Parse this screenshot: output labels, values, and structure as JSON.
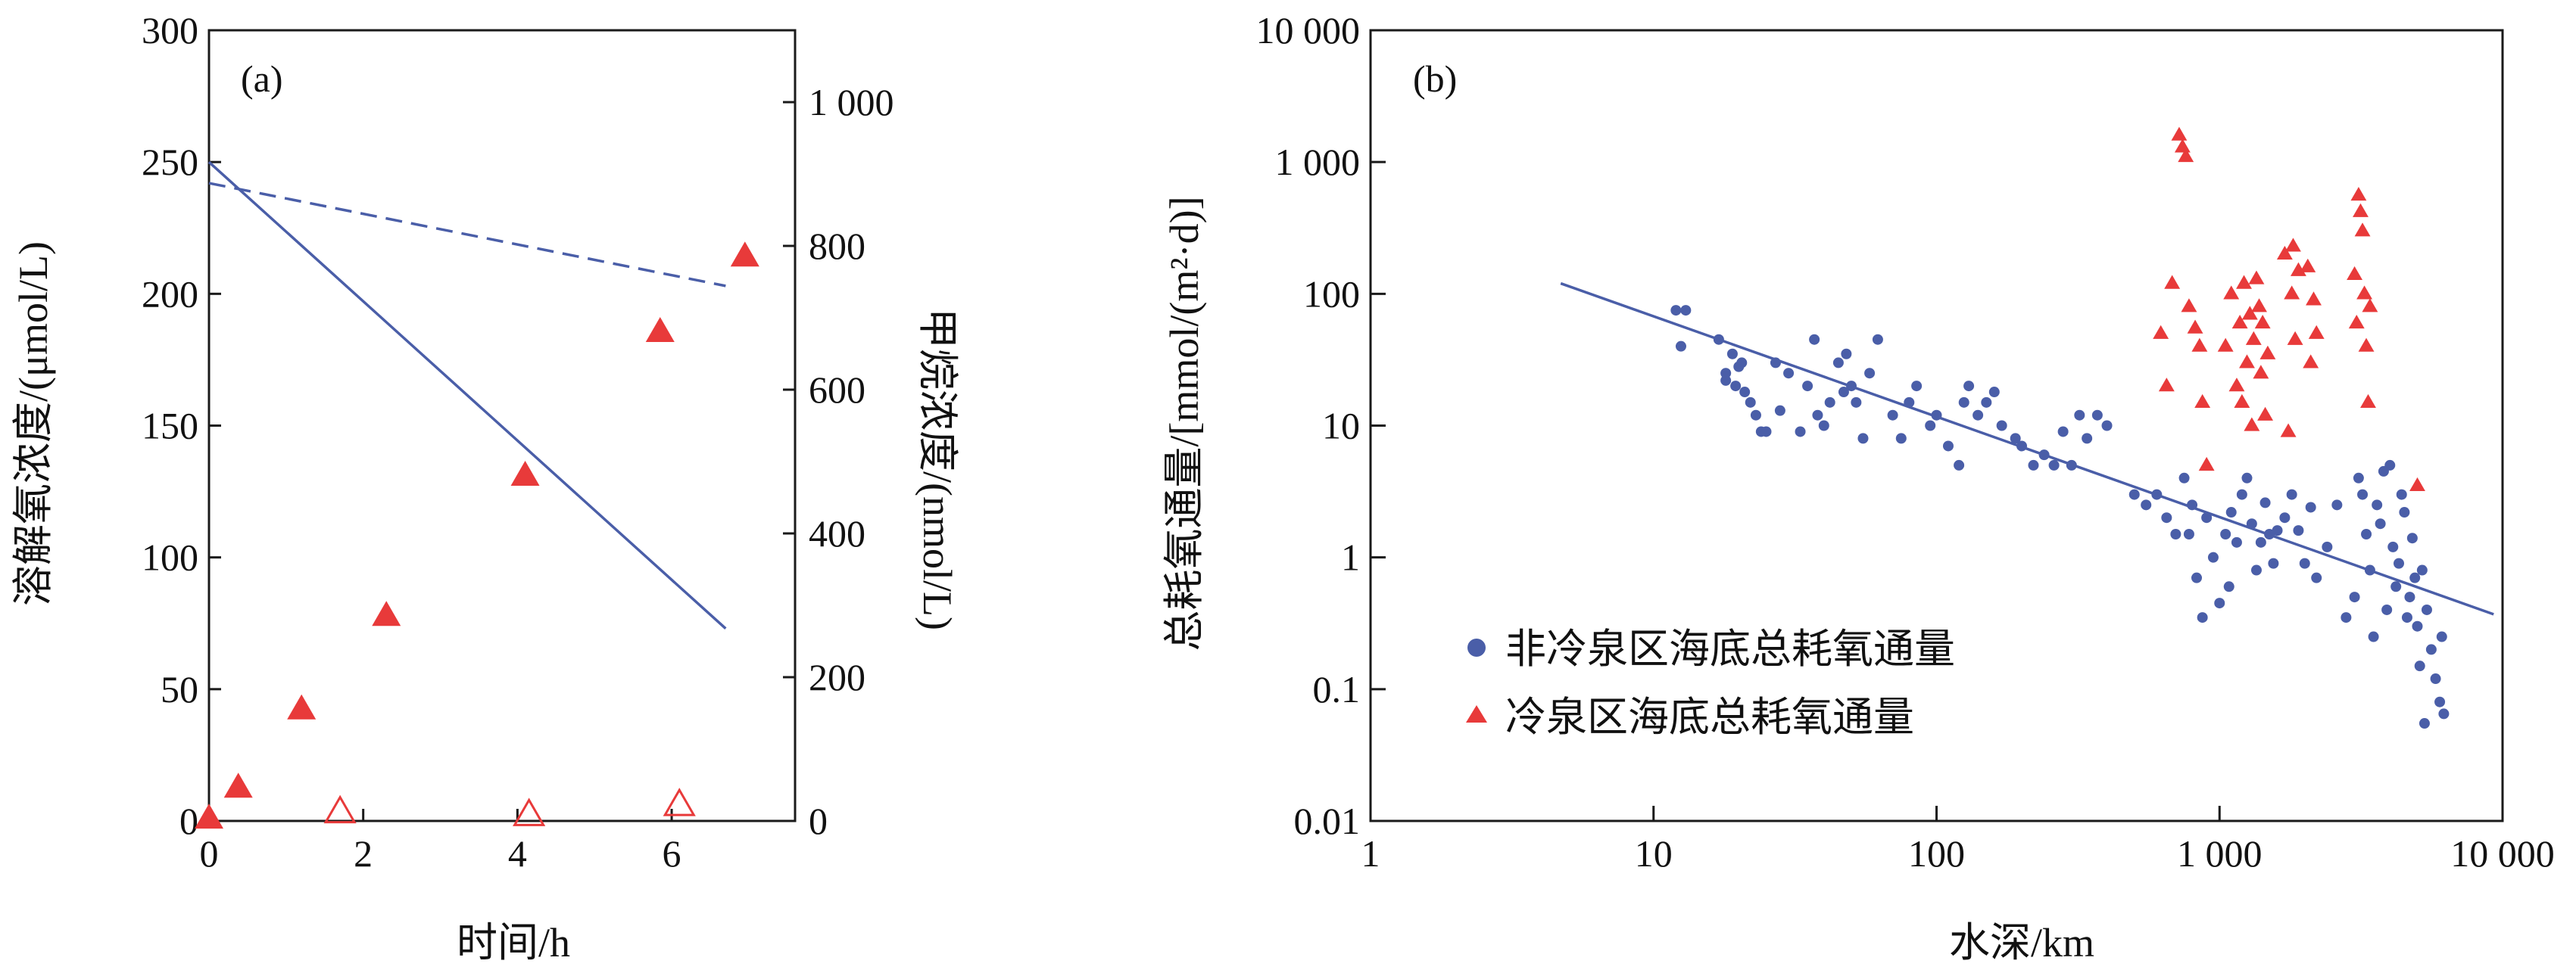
{
  "colors": {
    "blue": "#4a5ea8",
    "red": "#e83a3a",
    "axis": "#1a1a1a"
  },
  "chart_data": [
    {
      "type": "scatter",
      "panel_label": "(a)",
      "xlabel": "时间/h",
      "ylabel_left": "溶解氧浓度/(μmol/L)",
      "ylabel_right": "甲烷浓度/(nmol/L)",
      "xlim": [
        0,
        7.6
      ],
      "ylim_left": [
        0,
        300
      ],
      "ylim_right": [
        0,
        1100
      ],
      "x_ticks": [
        {
          "v": 0,
          "label": "0"
        },
        {
          "v": 2,
          "label": "2"
        },
        {
          "v": 4,
          "label": "4"
        },
        {
          "v": 6,
          "label": "6"
        }
      ],
      "y_left_ticks": [
        {
          "v": 0,
          "label": "0"
        },
        {
          "v": 50,
          "label": "50"
        },
        {
          "v": 100,
          "label": "100"
        },
        {
          "v": 150,
          "label": "150"
        },
        {
          "v": 200,
          "label": "200"
        },
        {
          "v": 250,
          "label": "250"
        },
        {
          "v": 300,
          "label": "300"
        }
      ],
      "y_right_ticks": [
        {
          "v": 0,
          "label": "0"
        },
        {
          "v": 200,
          "label": "200"
        },
        {
          "v": 400,
          "label": "400"
        },
        {
          "v": 600,
          "label": "600"
        },
        {
          "v": 800,
          "label": "800"
        },
        {
          "v": 1000,
          "label": "1 000"
        }
      ],
      "series": [
        {
          "style": "solid-line",
          "axis": "left",
          "x": [
            0,
            6.7
          ],
          "y": [
            250,
            73
          ]
        },
        {
          "style": "dashed-line",
          "axis": "left",
          "x": [
            0,
            6.7
          ],
          "y": [
            242,
            203
          ]
        },
        {
          "style": "filled-triangle",
          "axis": "right",
          "x": [
            0,
            0.38,
            1.2,
            2.3,
            4.1,
            5.85,
            6.95
          ],
          "y": [
            3,
            46,
            155,
            285,
            480,
            680,
            785
          ]
        },
        {
          "style": "open-triangle",
          "axis": "right",
          "x": [
            1.7,
            4.15,
            6.1
          ],
          "y": [
            12,
            8,
            22
          ]
        }
      ]
    },
    {
      "type": "scatter",
      "panel_label": "(b)",
      "xlabel": "水深/km",
      "ylabel": "总耗氧通量/[mmol/(m²·d)]",
      "xscale": "log",
      "yscale": "log",
      "xlim": [
        1,
        10000
      ],
      "ylim": [
        0.01,
        10000
      ],
      "x_ticks": [
        {
          "v": 1,
          "label": "1"
        },
        {
          "v": 10,
          "label": "10"
        },
        {
          "v": 100,
          "label": "100"
        },
        {
          "v": 1000,
          "label": "1 000"
        },
        {
          "v": 10000,
          "label": "10 000"
        }
      ],
      "y_ticks": [
        {
          "v": 0.01,
          "label": "0.01"
        },
        {
          "v": 0.1,
          "label": "0.1"
        },
        {
          "v": 1,
          "label": "1"
        },
        {
          "v": 10,
          "label": "10"
        },
        {
          "v": 100,
          "label": "100"
        },
        {
          "v": 1000,
          "label": "1 000"
        },
        {
          "v": 10000,
          "label": "10 000"
        }
      ],
      "legend_position": "bottom-left",
      "fit_line": {
        "x": [
          4.7,
          9300
        ],
        "y": [
          120,
          0.37
        ]
      },
      "series": [
        {
          "name": "非冷泉区海底总耗氧通量",
          "marker": "circle",
          "x": [
            12,
            12.5,
            13,
            17,
            18,
            18,
            19,
            19.5,
            20,
            20.5,
            21,
            22,
            23,
            24,
            25,
            27,
            28,
            30,
            33,
            35,
            37,
            38,
            40,
            42,
            45,
            47,
            48,
            50,
            52,
            55,
            58,
            62,
            70,
            75,
            80,
            85,
            95,
            100,
            110,
            120,
            125,
            130,
            140,
            150,
            160,
            170,
            190,
            200,
            220,
            240,
            260,
            280,
            300,
            320,
            340,
            370,
            400,
            500,
            550,
            600,
            650,
            700,
            750,
            780,
            800,
            830,
            870,
            900,
            950,
            1000,
            1050,
            1080,
            1100,
            1150,
            1200,
            1250,
            1300,
            1350,
            1400,
            1450,
            1500,
            1550,
            1600,
            1700,
            1800,
            1900,
            2000,
            2100,
            2200,
            2400,
            2600,
            2800,
            3000,
            3100,
            3200,
            3300,
            3400,
            3500,
            3600,
            3700,
            3800,
            3900,
            4000,
            4100,
            4200,
            4300,
            4400,
            4500,
            4600,
            4700,
            4800,
            4900,
            5000,
            5100,
            5200,
            5300,
            5400,
            5600,
            5800,
            6000,
            6100,
            6200
          ],
          "y": [
            75,
            40,
            75,
            45,
            25,
            22,
            35,
            20,
            28,
            30,
            18,
            15,
            12,
            9,
            9,
            30,
            13,
            25,
            9,
            20,
            45,
            12,
            10,
            15,
            30,
            18,
            35,
            20,
            15,
            8,
            25,
            45,
            12,
            8,
            15,
            20,
            10,
            12,
            7,
            5,
            15,
            20,
            12,
            15,
            18,
            10,
            8,
            7,
            5,
            6,
            5,
            9,
            5,
            12,
            8,
            12,
            10,
            3,
            2.5,
            3,
            2,
            1.5,
            4,
            1.5,
            2.5,
            0.7,
            0.35,
            2,
            1,
            0.45,
            1.5,
            0.6,
            2.2,
            1.3,
            3,
            4,
            1.8,
            0.8,
            1.3,
            2.6,
            1.5,
            0.9,
            1.6,
            2,
            3,
            1.6,
            0.9,
            2.4,
            0.7,
            1.2,
            2.5,
            0.35,
            0.5,
            4,
            3,
            1.5,
            0.8,
            0.25,
            2.5,
            1.8,
            4.5,
            0.4,
            5,
            1.2,
            0.6,
            0.9,
            3,
            2.2,
            0.35,
            0.5,
            1.4,
            0.7,
            0.3,
            0.15,
            0.8,
            0.055,
            0.4,
            0.2,
            0.12,
            0.08,
            0.25,
            0.065
          ]
        },
        {
          "name": "冷泉区海底总耗氧通量",
          "marker": "triangle",
          "x": [
            620,
            650,
            680,
            720,
            740,
            760,
            780,
            820,
            850,
            870,
            900,
            1050,
            1100,
            1150,
            1180,
            1200,
            1220,
            1250,
            1280,
            1300,
            1320,
            1350,
            1380,
            1400,
            1420,
            1450,
            1480,
            1700,
            1750,
            1800,
            1820,
            1850,
            1900,
            2050,
            2100,
            2150,
            2200,
            3000,
            3050,
            3100,
            3150,
            3200,
            3250,
            3300,
            3350,
            3400,
            5000
          ],
          "y": [
            50,
            20,
            120,
            1600,
            1300,
            1100,
            80,
            55,
            40,
            15,
            5,
            40,
            100,
            20,
            60,
            15,
            120,
            30,
            70,
            10,
            45,
            130,
            80,
            25,
            60,
            12,
            35,
            200,
            9,
            100,
            230,
            45,
            150,
            160,
            30,
            90,
            50,
            140,
            60,
            560,
            420,
            300,
            100,
            40,
            15,
            80,
            3.5
          ]
        }
      ]
    }
  ]
}
